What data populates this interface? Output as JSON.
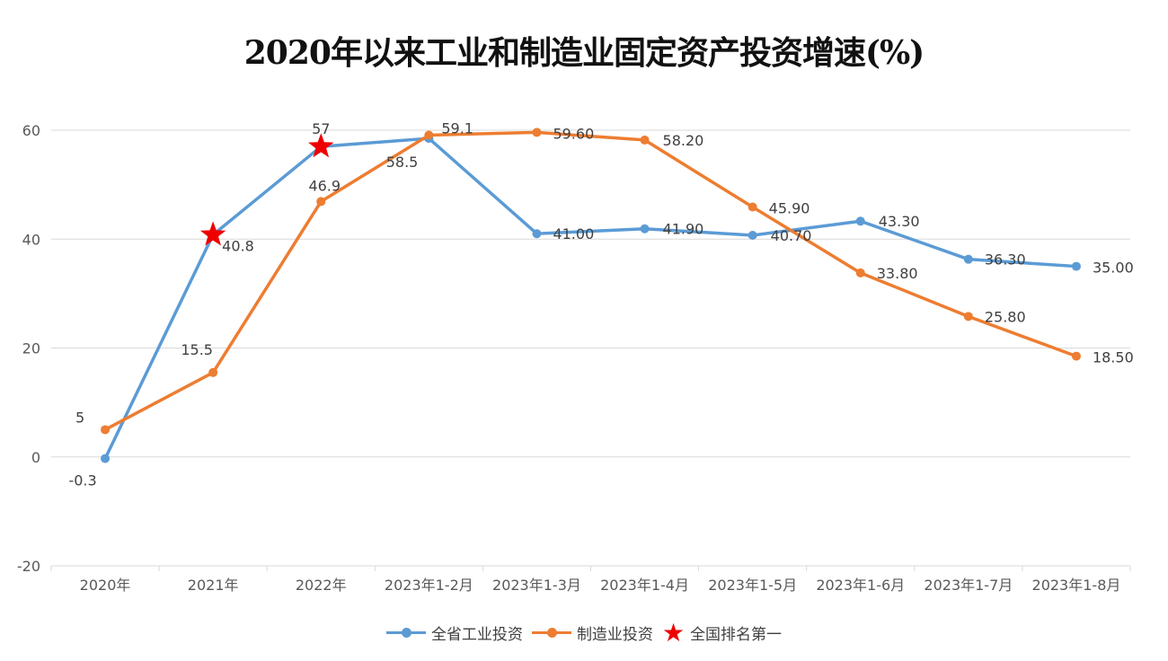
{
  "chart_data": {
    "type": "line",
    "title": "2020年以来工业和制造业固定资产投资增速(%)",
    "categories": [
      "2020年",
      "2021年",
      "2022年",
      "2023年1-2月",
      "2023年1-3月",
      "2023年1-4月",
      "2023年1-5月",
      "2023年1-6月",
      "2023年1-7月",
      "2023年1-8月"
    ],
    "ylim": [
      -20,
      60
    ],
    "yticks": [
      "-20",
      "0",
      "20",
      "40",
      "60"
    ],
    "grid": true,
    "legend_position": "bottom",
    "series": [
      {
        "name": "全省工业投资",
        "color": "#5b9bd5",
        "values": [
          -0.3,
          40.8,
          57,
          58.5,
          41.0,
          41.9,
          40.7,
          43.3,
          36.3,
          35.0
        ],
        "labels": [
          "-0.3",
          "40.8",
          "57",
          "58.5",
          "41.00",
          "41.90",
          "40.70",
          "43.30",
          "36.30",
          "35.00"
        ]
      },
      {
        "name": "制造业投资",
        "color": "#ed7d31",
        "values": [
          5,
          15.5,
          46.9,
          59.1,
          59.6,
          58.2,
          45.9,
          33.8,
          25.8,
          18.5
        ],
        "labels": [
          "5",
          "15.5",
          "46.9",
          "59.1",
          "59.60",
          "58.20",
          "45.90",
          "33.80",
          "25.80",
          "18.50"
        ]
      }
    ],
    "markers": {
      "name": "全国排名第一",
      "color": "#ee0000",
      "series": "全省工业投资",
      "category_indices": [
        1,
        2
      ]
    }
  }
}
